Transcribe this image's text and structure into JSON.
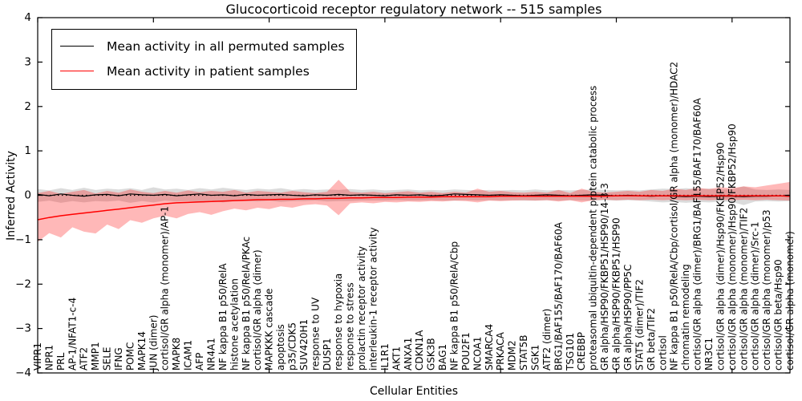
{
  "figure": {
    "title": "Glucocorticoid receptor regulatory network -- 515 samples",
    "background": "#ffffff"
  },
  "axes": {
    "ylabel": "Inferred Activity",
    "xlabel": "Cellular Entities",
    "ylim": [
      -4,
      4
    ],
    "yticks": [
      4,
      3,
      2,
      1,
      0,
      -1,
      -2,
      -3,
      -4
    ],
    "ytick_labels": [
      "4",
      "3",
      "2",
      "1",
      "0",
      "−1",
      "−2",
      "−3",
      "−4"
    ],
    "xtick_step": 10,
    "frame_color": "#000000"
  },
  "legend": {
    "position": "upper left",
    "items": [
      {
        "label": "Mean activity in all permuted samples",
        "color": "#000000"
      },
      {
        "label": "Mean activity in patient samples",
        "color": "#ff0000"
      }
    ]
  },
  "chart_data": {
    "type": "line",
    "title": "Glucocorticoid receptor regulatory network -- 515 samples",
    "xlabel": "Cellular Entities",
    "ylabel": "Inferred Activity",
    "ylim": [
      -4,
      4
    ],
    "grid": false,
    "zero_line": {
      "style": "dotted",
      "color": "#000000",
      "y": 0
    },
    "categories": [
      "VIPR1",
      "NPR1",
      "PRL",
      "AP-1/NFAT1-c-4",
      "ATF2",
      "MMP1",
      "SELE",
      "IFNG",
      "POMC",
      "MAPK14",
      "JUN (dimer)",
      "cortisol/GR alpha (monomer)/AP-1",
      "MAPK8",
      "ICAM1",
      "AFP",
      "NR4A1",
      "NF kappa B1 p50/RelA",
      "histone acetylation",
      "NF kappa B1 p50/RelA/PKAc",
      "cortisol/GR alpha (dimer)",
      "MAPKKK cascade",
      "apoptosis",
      "p35/CDK5",
      "SUV420H1",
      "response to UV",
      "DUSP1",
      "response to hypoxia",
      "response to stress",
      "prolactin receptor activity",
      "interleukin-1 receptor activity",
      "IL1R1",
      "AKT1",
      "ANXA1",
      "CDKN1A",
      "GSK3B",
      "BAG1",
      "NF kappa B1 p50/RelA/Cbp",
      "POU2F1",
      "NCOA1",
      "SMARCA4",
      "PRKACA",
      "MDM2",
      "STAT5B",
      "SGK1",
      "ATF2 (dimer)",
      "BRG1/BAF155/BAF170/BAF60A",
      "TSG101",
      "CREBBP",
      "proteasomal ubiquitin-dependent protein catabolic process",
      "GR alpha/HSP90/FKBP51/HSP90/14-3-3",
      "GR alpha/HSP90/FKBP51/HSP90",
      "GR alpha/HSP90/PP5C",
      "STAT5 (dimer)/TIF2",
      "GR beta/TIF2",
      "cortisol",
      "NF kappa B1 p50/RelA/Cbp/cortisol/GR alpha (monomer)/HDAC2",
      "chromatin remodeling",
      "cortisol/GR alpha (dimer)/BRG1/BAF155/BAF170/BAF60A",
      "NR3C1",
      "cortisol/GR alpha (dimer)/Hsp90/FKBP52/Hsp90",
      "cortisol/GR alpha (monomer)/Hsp90/FKBP52/Hsp90",
      "cortisol/GR alpha (monomer)/TIF2",
      "cortisol/GR alpha (dimer)/Src-1",
      "cortisol/GR alpha (monomer)/p53",
      "cortisol/GR beta/Hsp90",
      "cortisol/GR alpha (monomer)"
    ],
    "series": [
      {
        "name": "Mean activity in all permuted samples",
        "color": "#000000",
        "line_width": 1.2,
        "values": [
          0.02,
          -0.01,
          0.03,
          0.0,
          -0.02,
          0.01,
          0.02,
          -0.01,
          0.03,
          0.01,
          0.0,
          0.02,
          -0.01,
          0.01,
          0.03,
          0.0,
          0.01,
          -0.01,
          0.02,
          0.0,
          0.01,
          0.02,
          0.0,
          -0.01,
          0.01,
          0.0,
          0.02,
          0.0,
          0.01,
          0.0,
          -0.01,
          0.01,
          0.0,
          0.01,
          -0.01,
          0.0,
          0.03,
          0.02,
          0.01,
          0.0,
          0.01,
          0.0,
          -0.01,
          0.0,
          0.01,
          0.0,
          -0.01,
          0.0,
          0.01,
          0.0,
          -0.01,
          0.0,
          -0.01,
          -0.02,
          -0.01,
          -0.02,
          -0.03,
          -0.02,
          -0.03,
          -0.02,
          -0.02,
          -0.03,
          -0.02,
          -0.02,
          -0.01,
          -0.02
        ],
        "band": {
          "color": "#999999",
          "opacity": 0.35,
          "upper": [
            0.14,
            0.11,
            0.16,
            0.12,
            0.17,
            0.12,
            0.15,
            0.13,
            0.16,
            0.12,
            0.18,
            0.13,
            0.15,
            0.12,
            0.16,
            0.13,
            0.17,
            0.14,
            0.12,
            0.15,
            0.13,
            0.16,
            0.12,
            0.14,
            0.12,
            0.13,
            0.12,
            0.14,
            0.12,
            0.13,
            0.11,
            0.12,
            0.13,
            0.11,
            0.12,
            0.11,
            0.13,
            0.12,
            0.11,
            0.12,
            0.11,
            0.12,
            0.11,
            0.13,
            0.11,
            0.12,
            0.11,
            0.12,
            0.13,
            0.12,
            0.11,
            0.12,
            0.11,
            0.13,
            0.15,
            0.14,
            0.16,
            0.14,
            0.15,
            0.13,
            0.14,
            0.2,
            0.13,
            0.12,
            0.13,
            0.12
          ],
          "lower": [
            -0.15,
            -0.12,
            -0.17,
            -0.13,
            -0.16,
            -0.13,
            -0.14,
            -0.12,
            -0.17,
            -0.13,
            -0.16,
            -0.12,
            -0.14,
            -0.13,
            -0.15,
            -0.12,
            -0.16,
            -0.13,
            -0.13,
            -0.14,
            -0.12,
            -0.15,
            -0.13,
            -0.13,
            -0.12,
            -0.14,
            -0.13,
            -0.13,
            -0.12,
            -0.12,
            -0.12,
            -0.11,
            -0.12,
            -0.12,
            -0.11,
            -0.12,
            -0.12,
            -0.11,
            -0.12,
            -0.11,
            -0.12,
            -0.11,
            -0.12,
            -0.12,
            -0.11,
            -0.12,
            -0.11,
            -0.12,
            -0.12,
            -0.11,
            -0.12,
            -0.11,
            -0.12,
            -0.14,
            -0.16,
            -0.15,
            -0.17,
            -0.15,
            -0.16,
            -0.14,
            -0.15,
            -0.22,
            -0.14,
            -0.13,
            -0.14,
            -0.13
          ]
        }
      },
      {
        "name": "Mean activity in patient samples",
        "color": "#ff0000",
        "line_width": 1.5,
        "values": [
          -0.55,
          -0.5,
          -0.46,
          -0.43,
          -0.4,
          -0.37,
          -0.34,
          -0.31,
          -0.28,
          -0.25,
          -0.22,
          -0.19,
          -0.17,
          -0.16,
          -0.15,
          -0.14,
          -0.13,
          -0.12,
          -0.11,
          -0.1,
          -0.1,
          -0.09,
          -0.09,
          -0.08,
          -0.08,
          -0.07,
          -0.07,
          -0.06,
          -0.06,
          -0.05,
          -0.05,
          -0.05,
          -0.04,
          -0.04,
          -0.04,
          -0.03,
          -0.03,
          -0.03,
          -0.03,
          -0.03,
          -0.02,
          -0.02,
          -0.02,
          -0.02,
          -0.02,
          -0.02,
          -0.02,
          -0.02,
          -0.02,
          -0.02,
          -0.01,
          -0.01,
          -0.01,
          -0.01,
          -0.01,
          -0.01,
          -0.01,
          -0.01,
          -0.01,
          -0.01,
          -0.01,
          -0.01,
          -0.01,
          -0.01,
          -0.01,
          -0.02
        ],
        "band": {
          "color": "#ff0000",
          "opacity": 0.28,
          "upper": [
            0.05,
            0.1,
            0.03,
            0.08,
            0.12,
            0.04,
            0.1,
            0.06,
            0.13,
            0.08,
            0.05,
            0.1,
            0.06,
            0.11,
            0.07,
            0.1,
            0.08,
            0.12,
            0.06,
            0.1,
            0.08,
            0.06,
            0.1,
            0.07,
            0.05,
            0.08,
            0.35,
            0.08,
            0.06,
            0.08,
            0.05,
            0.07,
            0.09,
            0.06,
            0.08,
            0.05,
            0.08,
            0.06,
            0.15,
            0.08,
            0.1,
            0.07,
            0.06,
            0.08,
            0.06,
            0.12,
            0.05,
            0.15,
            0.08,
            0.06,
            0.08,
            0.1,
            0.08,
            0.12,
            0.1,
            0.15,
            0.12,
            0.17,
            0.14,
            0.18,
            0.16,
            0.2,
            0.18,
            0.22,
            0.26,
            0.3
          ],
          "lower": [
            -1.05,
            -0.85,
            -0.95,
            -0.72,
            -0.82,
            -0.86,
            -0.66,
            -0.76,
            -0.56,
            -0.62,
            -0.52,
            -0.46,
            -0.52,
            -0.42,
            -0.38,
            -0.44,
            -0.36,
            -0.3,
            -0.34,
            -0.28,
            -0.31,
            -0.25,
            -0.28,
            -0.22,
            -0.2,
            -0.23,
            -0.45,
            -0.18,
            -0.16,
            -0.18,
            -0.15,
            -0.16,
            -0.14,
            -0.15,
            -0.13,
            -0.14,
            -0.12,
            -0.13,
            -0.16,
            -0.12,
            -0.13,
            -0.12,
            -0.11,
            -0.12,
            -0.11,
            -0.14,
            -0.11,
            -0.16,
            -0.11,
            -0.1,
            -0.11,
            -0.1,
            -0.11,
            -0.1,
            -0.11,
            -0.1,
            -0.11,
            -0.1,
            -0.11,
            -0.1,
            -0.11,
            -0.1,
            -0.11,
            -0.1,
            -0.11,
            -0.12
          ]
        }
      }
    ]
  }
}
